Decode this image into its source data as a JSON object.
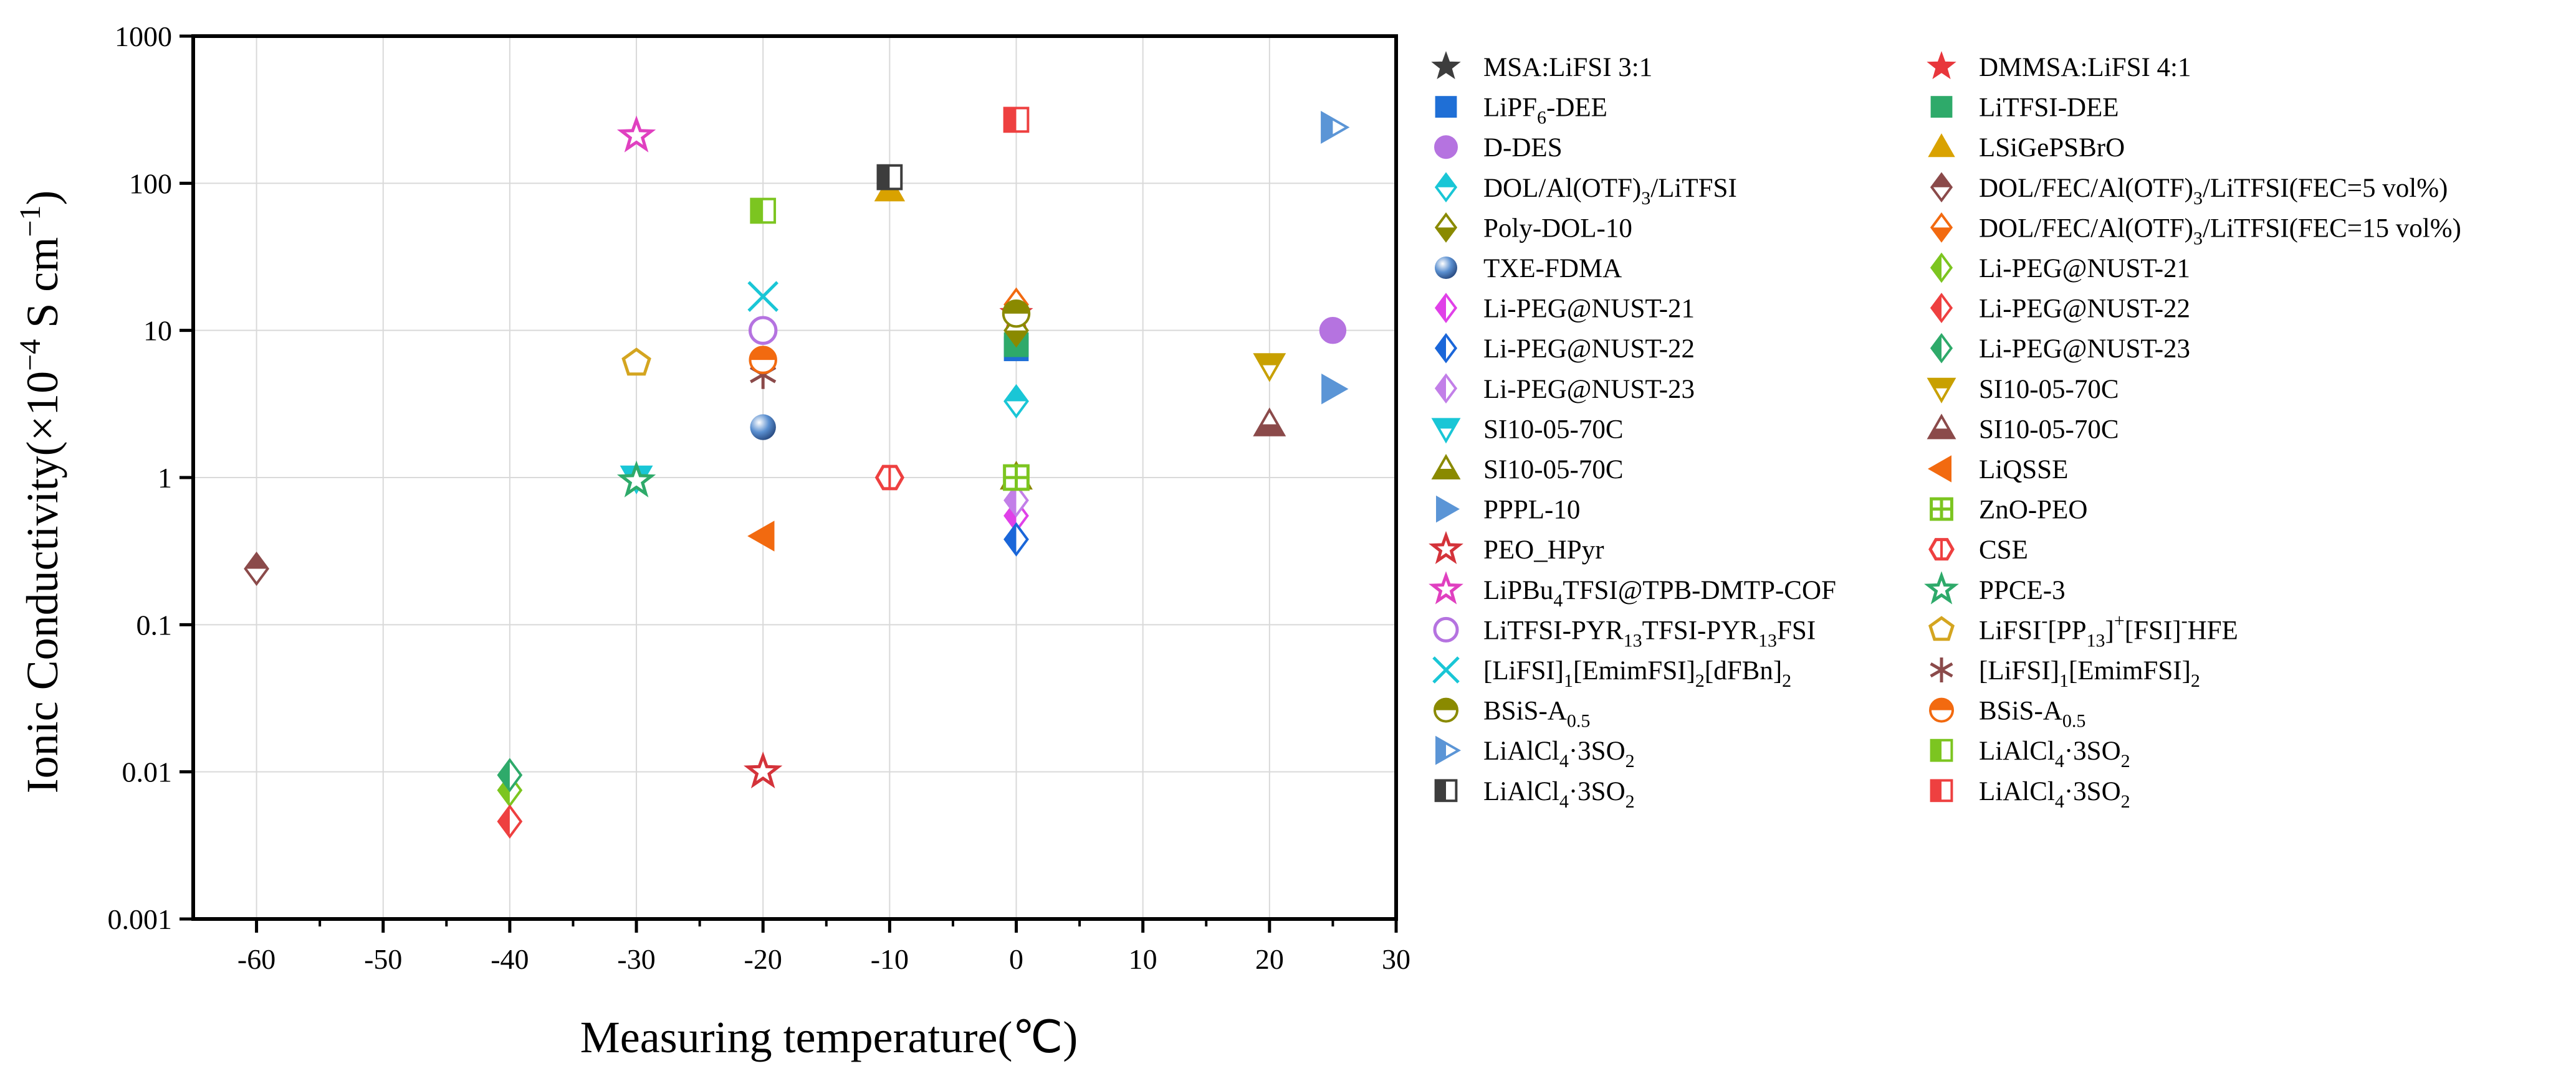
{
  "chart_data": {
    "type": "scatter",
    "title": "",
    "xlabel": "Measuring temperature(℃)",
    "ylabel": "Ionic Conductivity(×10⁻⁴ S cm⁻¹)",
    "ylabel_parts": {
      "pre": "Ionic Conductivity(×10",
      "exp1": "−4",
      "mid": " S cm",
      "exp2": "−1",
      "post": ")"
    },
    "xlim": [
      -65,
      30
    ],
    "ylim": [
      0.001,
      1000
    ],
    "yscale": "log",
    "grid": true,
    "legend_position": "right",
    "x_ticks": [
      -60,
      -50,
      -40,
      -30,
      -20,
      -10,
      0,
      10,
      20,
      30
    ],
    "x_tick_labels": [
      "-60",
      "-50",
      "-40",
      "-30",
      "-20",
      "-10",
      "0",
      "10",
      "20",
      "30"
    ],
    "y_ticks": [
      0.001,
      0.01,
      0.1,
      1,
      10,
      100,
      1000
    ],
    "y_tick_labels": [
      "0.001",
      "0.01",
      "0.1",
      "1",
      "10",
      "100",
      "1000"
    ],
    "series": [
      {
        "name": "MSA:LiFSI 3:1",
        "label": [
          [
            "MSA:LiFSI 3:1",
            ""
          ]
        ],
        "marker": "star",
        "color": "#3d3d3d",
        "fill": "full",
        "x": [
          0
        ],
        "y": [
          13
        ]
      },
      {
        "name": "DMMSA:LiFSI 4:1",
        "label": [
          [
            "DMMSA:LiFSI 4:1",
            ""
          ]
        ],
        "marker": "star",
        "color": "#e8373c",
        "fill": "full",
        "x": [
          0
        ],
        "y": [
          13
        ]
      },
      {
        "name": "LiPF6-DEE",
        "label": [
          [
            "LiPF",
            ""
          ],
          [
            "6",
            "sub"
          ],
          [
            "-DEE",
            ""
          ]
        ],
        "marker": "square",
        "color": "#1f6fd6",
        "fill": "full",
        "x": [
          0
        ],
        "y": [
          7.5
        ]
      },
      {
        "name": "LiTFSI-DEE",
        "label": [
          [
            "LiTFSI-DEE",
            ""
          ]
        ],
        "marker": "square",
        "color": "#2eaa6a",
        "fill": "full",
        "x": [
          0
        ],
        "y": [
          8
        ]
      },
      {
        "name": "D-DES",
        "label": [
          [
            "D-DES",
            ""
          ]
        ],
        "marker": "circle",
        "color": "#b573e0",
        "fill": "full",
        "x": [
          25
        ],
        "y": [
          10
        ]
      },
      {
        "name": "LSiGePSBrO",
        "label": [
          [
            "LSiGePSBrO",
            ""
          ]
        ],
        "marker": "triangle",
        "color": "#d9a200",
        "fill": "full",
        "x": [
          -10
        ],
        "y": [
          90
        ]
      },
      {
        "name": "DOL/Al(OTF)3/LiTFSI",
        "label": [
          [
            "DOL/Al(OTF)",
            ""
          ],
          [
            "3",
            "sub"
          ],
          [
            "/LiTFSI",
            ""
          ]
        ],
        "marker": "diamond",
        "color": "#19c6d6",
        "fill": "half-top",
        "x": [
          0
        ],
        "y": [
          3.3
        ]
      },
      {
        "name": "DOL/FEC/Al(OTF)3/LiTFSI(FEC=5 vol%)",
        "label": [
          [
            "DOL/FEC/Al(OTF)",
            ""
          ],
          [
            "3",
            "sub"
          ],
          [
            "/LiTFSI(FEC=5 vol%)",
            ""
          ]
        ],
        "marker": "diamond",
        "color": "#8b4a4a",
        "fill": "half-top",
        "x": [
          -60
        ],
        "y": [
          0.24
        ]
      },
      {
        "name": "Poly-DOL-10",
        "label": [
          [
            "Poly-DOL-10",
            ""
          ]
        ],
        "marker": "diamond",
        "color": "#8a8a00",
        "fill": "half-bottom",
        "x": [
          0
        ],
        "y": [
          10
        ]
      },
      {
        "name": "DOL/FEC/Al(OTF)3/LiTFSI(FEC=15 vol%)",
        "label": [
          [
            "DOL/FEC/Al(OTF)",
            ""
          ],
          [
            "3",
            "sub"
          ],
          [
            "/LiTFSI(FEC=15 vol%)",
            ""
          ]
        ],
        "marker": "diamond",
        "color": "#f26a10",
        "fill": "half-bottom",
        "x": [
          0
        ],
        "y": [
          15
        ]
      },
      {
        "name": "TXE-FDMA",
        "label": [
          [
            "TXE-FDMA",
            ""
          ]
        ],
        "marker": "sphere",
        "color": "#5a8fd0",
        "fill": "full",
        "x": [
          -20
        ],
        "y": [
          2.2
        ]
      },
      {
        "name": "Li-PEG@NUST-21",
        "label": [
          [
            "Li-PEG@NUST-21",
            ""
          ]
        ],
        "marker": "diamond",
        "color": "#7cc520",
        "fill": "half-left",
        "x": [
          -40
        ],
        "y": [
          0.0075
        ]
      },
      {
        "name": "Li-PEG@NUST-21",
        "label": [
          [
            "Li-PEG@NUST-21",
            ""
          ]
        ],
        "marker": "diamond",
        "color": "#e040e8",
        "fill": "half-left",
        "x": [
          0
        ],
        "y": [
          0.55
        ]
      },
      {
        "name": "Li-PEG@NUST-22",
        "label": [
          [
            "Li-PEG@NUST-22",
            ""
          ]
        ],
        "marker": "diamond",
        "color": "#ee4040",
        "fill": "half-left",
        "x": [
          -40
        ],
        "y": [
          0.0046
        ]
      },
      {
        "name": "Li-PEG@NUST-22",
        "label": [
          [
            "Li-PEG@NUST-22",
            ""
          ]
        ],
        "marker": "diamond",
        "color": "#1a66d9",
        "fill": "half-left",
        "x": [
          0
        ],
        "y": [
          0.38
        ]
      },
      {
        "name": "Li-PEG@NUST-23",
        "label": [
          [
            "Li-PEG@NUST-23",
            ""
          ]
        ],
        "marker": "diamond",
        "color": "#2eaa6a",
        "fill": "half-left",
        "x": [
          -40
        ],
        "y": [
          0.0095
        ]
      },
      {
        "name": "Li-PEG@NUST-23",
        "label": [
          [
            "Li-PEG@NUST-23",
            ""
          ]
        ],
        "marker": "diamond",
        "color": "#c27fe8",
        "fill": "half-left",
        "x": [
          0
        ],
        "y": [
          0.7
        ]
      },
      {
        "name": "SI10-05-70C",
        "label": [
          [
            "SI10-05-70C",
            ""
          ]
        ],
        "marker": "triangle-down",
        "color": "#c8a000",
        "fill": "half-top",
        "x": [
          20
        ],
        "y": [
          5.8
        ]
      },
      {
        "name": "SI10-05-70C",
        "label": [
          [
            "SI10-05-70C",
            ""
          ]
        ],
        "marker": "triangle-down",
        "color": "#19c6d6",
        "fill": "half-top",
        "x": [
          -30
        ],
        "y": [
          1.0
        ]
      },
      {
        "name": "SI10-05-70C",
        "label": [
          [
            "SI10-05-70C",
            ""
          ]
        ],
        "marker": "triangle",
        "color": "#8b4a4a",
        "fill": "half-bottom",
        "x": [
          20
        ],
        "y": [
          2.3
        ]
      },
      {
        "name": "SI10-05-70C",
        "label": [
          [
            "SI10-05-70C",
            ""
          ]
        ],
        "marker": "triangle",
        "color": "#8a8a00",
        "fill": "half-bottom",
        "x": [
          0
        ],
        "y": [
          1.0
        ]
      },
      {
        "name": "LiQSSE",
        "label": [
          [
            "LiQSSE",
            ""
          ]
        ],
        "marker": "triangle-left",
        "color": "#f26a10",
        "fill": "full",
        "x": [
          -20
        ],
        "y": [
          0.4
        ]
      },
      {
        "name": "PPPL-10",
        "label": [
          [
            "PPPL-10",
            ""
          ]
        ],
        "marker": "triangle-right",
        "color": "#5b95d6",
        "fill": "full",
        "x": [
          25
        ],
        "y": [
          4.0
        ]
      },
      {
        "name": "ZnO-PEO",
        "label": [
          [
            "ZnO-PEO",
            ""
          ]
        ],
        "marker": "square-cross",
        "color": "#7cc520",
        "fill": "open",
        "x": [
          0
        ],
        "y": [
          1.0
        ]
      },
      {
        "name": "PEO_HPyr",
        "label": [
          [
            "PEO_HPyr",
            ""
          ]
        ],
        "marker": "star",
        "color": "#d4333a",
        "fill": "open",
        "x": [
          -20
        ],
        "y": [
          0.01
        ]
      },
      {
        "name": "CSE",
        "label": [
          [
            "CSE",
            ""
          ]
        ],
        "marker": "hexagon-split",
        "color": "#ee4040",
        "fill": "open",
        "x": [
          -10
        ],
        "y": [
          1.0
        ]
      },
      {
        "name": "LiPBu4TFSI@TPB-DMTP-COF",
        "label": [
          [
            "LiPBu",
            ""
          ],
          [
            "4",
            "sub"
          ],
          [
            "TFSI@TPB-DMTP-COF",
            ""
          ]
        ],
        "marker": "star",
        "color": "#e040c0",
        "fill": "open",
        "x": [
          -30
        ],
        "y": [
          210
        ]
      },
      {
        "name": "PPCE-3",
        "label": [
          [
            "PPCE-3",
            ""
          ]
        ],
        "marker": "star",
        "color": "#2eaa6a",
        "fill": "open",
        "x": [
          -30
        ],
        "y": [
          0.95
        ]
      },
      {
        "name": "LiTFSI-PYR13TFSI-PYR13FSI",
        "label": [
          [
            "LiTFSI-PYR",
            ""
          ],
          [
            "13",
            "sub"
          ],
          [
            "TFSI-PYR",
            ""
          ],
          [
            "13",
            "sub"
          ],
          [
            "FSI",
            ""
          ]
        ],
        "marker": "circle",
        "color": "#b573e0",
        "fill": "open",
        "x": [
          -20
        ],
        "y": [
          10
        ]
      },
      {
        "name": "LiFSI-[PP13]+[FSI]-HFE",
        "label": [
          [
            "LiFSI",
            ""
          ],
          [
            "-",
            "sup"
          ],
          [
            "[PP",
            ""
          ],
          [
            "13",
            "sub"
          ],
          [
            "]",
            ""
          ],
          [
            "+",
            "sup"
          ],
          [
            "[FSI]",
            ""
          ],
          [
            "-",
            "sup"
          ],
          [
            "HFE",
            ""
          ]
        ],
        "marker": "pentagon",
        "color": "#d4a520",
        "fill": "open",
        "x": [
          -30
        ],
        "y": [
          6.0
        ]
      },
      {
        "name": "[LiFSI]1[EmimFSI]2[dFBn]2",
        "label": [
          [
            "[LiFSI]",
            ""
          ],
          [
            "1",
            "sub"
          ],
          [
            "[EmimFSI]",
            ""
          ],
          [
            "2",
            "sub"
          ],
          [
            "[dFBn]",
            ""
          ],
          [
            "2",
            "sub"
          ]
        ],
        "marker": "x",
        "color": "#19c6d6",
        "fill": "open",
        "x": [
          -20
        ],
        "y": [
          17
        ]
      },
      {
        "name": "[LiFSI]1[EmimFSI]2",
        "label": [
          [
            "[LiFSI]",
            ""
          ],
          [
            "1",
            "sub"
          ],
          [
            "[EmimFSI]",
            ""
          ],
          [
            "2",
            "sub"
          ]
        ],
        "marker": "asterisk",
        "color": "#8b4a4a",
        "fill": "open",
        "x": [
          -20
        ],
        "y": [
          5.0
        ]
      },
      {
        "name": "BSiS-A0.5",
        "label": [
          [
            "BSiS-A",
            ""
          ],
          [
            "0.5",
            "sub"
          ]
        ],
        "marker": "circle",
        "color": "#8a8a00",
        "fill": "half-top",
        "x": [
          0
        ],
        "y": [
          13
        ]
      },
      {
        "name": "BSiS-A0.5",
        "label": [
          [
            "BSiS-A",
            ""
          ],
          [
            "0.5",
            "sub"
          ]
        ],
        "marker": "circle",
        "color": "#f26a10",
        "fill": "half-top",
        "x": [
          -20
        ],
        "y": [
          6.3
        ]
      },
      {
        "name": "LiAlCl4·3SO2",
        "label": [
          [
            "LiAlCl",
            ""
          ],
          [
            "4",
            "sub"
          ],
          [
            "·3SO",
            ""
          ],
          [
            "2",
            "sub"
          ]
        ],
        "marker": "triangle-right",
        "color": "#5b95d6",
        "fill": "half-left",
        "x": [
          25
        ],
        "y": [
          240
        ]
      },
      {
        "name": "LiAlCl4·3SO2",
        "label": [
          [
            "LiAlCl",
            ""
          ],
          [
            "4",
            "sub"
          ],
          [
            "·3SO",
            ""
          ],
          [
            "2",
            "sub"
          ]
        ],
        "marker": "square",
        "color": "#7cc520",
        "fill": "half-left",
        "x": [
          -20
        ],
        "y": [
          65
        ]
      },
      {
        "name": "LiAlCl4·3SO2",
        "label": [
          [
            "LiAlCl",
            ""
          ],
          [
            "4",
            "sub"
          ],
          [
            "·3SO",
            ""
          ],
          [
            "2",
            "sub"
          ]
        ],
        "marker": "square",
        "color": "#3d3d3d",
        "fill": "half-left",
        "x": [
          -10
        ],
        "y": [
          110
        ]
      },
      {
        "name": "LiAlCl4·3SO2",
        "label": [
          [
            "LiAlCl",
            ""
          ],
          [
            "4",
            "sub"
          ],
          [
            "·3SO",
            ""
          ],
          [
            "2",
            "sub"
          ]
        ],
        "marker": "square",
        "color": "#ee4040",
        "fill": "half-left",
        "x": [
          0
        ],
        "y": [
          270
        ]
      }
    ]
  }
}
